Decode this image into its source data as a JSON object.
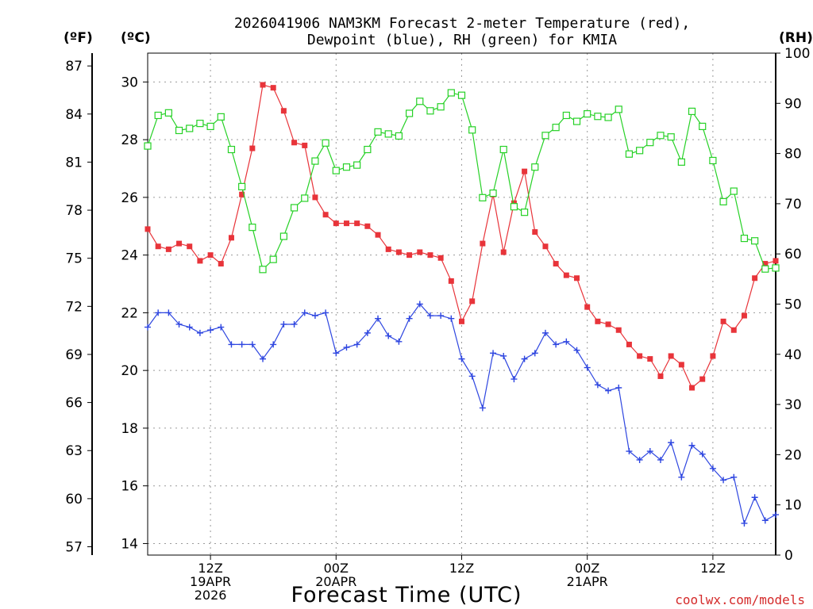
{
  "chart_data": {
    "type": "line",
    "title_line1": "2026041906 NAM3KM Forecast 2-meter Temperature (red),",
    "title_line2": "Dewpoint (blue), RH (green) for KMIA",
    "xlabel": "Forecast Time (UTC)",
    "credit": "coolwx.com/models",
    "units": {
      "f": "(ºF)",
      "c": "(ºC)",
      "rh": "(RH)"
    },
    "x_range": [
      0,
      60
    ],
    "c_range": [
      13.6,
      31.0
    ],
    "rh_range": [
      0,
      100
    ],
    "f_ticks": [
      {
        "v": 57,
        "label": "57"
      },
      {
        "v": 60,
        "label": "60"
      },
      {
        "v": 63,
        "label": "63"
      },
      {
        "v": 66,
        "label": "66"
      },
      {
        "v": 69,
        "label": "69"
      },
      {
        "v": 72,
        "label": "72"
      },
      {
        "v": 75,
        "label": "75"
      },
      {
        "v": 78,
        "label": "78"
      },
      {
        "v": 81,
        "label": "81"
      },
      {
        "v": 84,
        "label": "84"
      },
      {
        "v": 87,
        "label": "87"
      }
    ],
    "c_ticks": [
      {
        "v": 14,
        "label": "14"
      },
      {
        "v": 16,
        "label": "16"
      },
      {
        "v": 18,
        "label": "18"
      },
      {
        "v": 20,
        "label": "20"
      },
      {
        "v": 22,
        "label": "22"
      },
      {
        "v": 24,
        "label": "24"
      },
      {
        "v": 26,
        "label": "26"
      },
      {
        "v": 28,
        "label": "28"
      },
      {
        "v": 30,
        "label": "30"
      }
    ],
    "rh_ticks": [
      {
        "v": 0,
        "label": "0"
      },
      {
        "v": 10,
        "label": "10"
      },
      {
        "v": 20,
        "label": "20"
      },
      {
        "v": 30,
        "label": "30"
      },
      {
        "v": 40,
        "label": "40"
      },
      {
        "v": 50,
        "label": "50"
      },
      {
        "v": 60,
        "label": "60"
      },
      {
        "v": 70,
        "label": "70"
      },
      {
        "v": 80,
        "label": "80"
      },
      {
        "v": 90,
        "label": "90"
      },
      {
        "v": 100,
        "label": "100"
      }
    ],
    "x_ticks": [
      {
        "v": 6,
        "lines": [
          "12Z",
          "19APR",
          "2026"
        ]
      },
      {
        "v": 18,
        "lines": [
          "00Z",
          "20APR"
        ]
      },
      {
        "v": 30,
        "lines": [
          "12Z"
        ]
      },
      {
        "v": 42,
        "lines": [
          "00Z",
          "21APR"
        ]
      },
      {
        "v": 54,
        "lines": [
          "12Z"
        ]
      }
    ],
    "series": [
      {
        "name": "2-meter Temperature",
        "unit": "C",
        "color": "#e8343a",
        "marker": "filled-square",
        "x": [
          0,
          1,
          2,
          3,
          4,
          5,
          6,
          7,
          8,
          9,
          10,
          11,
          12,
          13,
          14,
          15,
          16,
          17,
          18,
          19,
          20,
          21,
          22,
          23,
          24,
          25,
          26,
          27,
          28,
          29,
          30,
          31,
          32,
          33,
          34,
          35,
          36,
          37,
          38,
          39,
          40,
          41,
          42,
          43,
          44,
          45,
          46,
          47,
          48,
          49,
          50,
          51,
          52,
          53,
          54,
          55,
          56,
          57,
          58,
          59,
          60
        ],
        "values": [
          24.9,
          24.3,
          24.2,
          24.4,
          24.3,
          23.8,
          24.0,
          23.7,
          24.6,
          26.1,
          27.7,
          29.9,
          29.8,
          29.0,
          27.9,
          27.8,
          26.0,
          25.4,
          25.1,
          25.1,
          25.1,
          25.0,
          24.7,
          24.2,
          24.1,
          24.0,
          24.1,
          24.0,
          23.9,
          23.1,
          21.7,
          22.4,
          24.4,
          26.1,
          24.1,
          25.8,
          26.9,
          24.8,
          24.3,
          23.7,
          23.3,
          23.2,
          22.2,
          21.7,
          21.6,
          21.4,
          20.9,
          20.5,
          20.4,
          19.8,
          20.5,
          20.2,
          19.4,
          19.7,
          20.5,
          21.7,
          21.4,
          21.9,
          23.2,
          23.7,
          23.8
        ]
      },
      {
        "name": "Dewpoint",
        "unit": "C",
        "color": "#2e46e0",
        "marker": "plus",
        "x": [
          0,
          1,
          2,
          3,
          4,
          5,
          6,
          7,
          8,
          9,
          10,
          11,
          12,
          13,
          14,
          15,
          16,
          17,
          18,
          19,
          20,
          21,
          22,
          23,
          24,
          25,
          26,
          27,
          28,
          29,
          30,
          31,
          32,
          33,
          34,
          35,
          36,
          37,
          38,
          39,
          40,
          41,
          42,
          43,
          44,
          45,
          46,
          47,
          48,
          49,
          50,
          51,
          52,
          53,
          54,
          55,
          56,
          57,
          58,
          59,
          60
        ],
        "values": [
          21.5,
          22.0,
          22.0,
          21.6,
          21.5,
          21.3,
          21.4,
          21.5,
          20.9,
          20.9,
          20.9,
          20.4,
          20.9,
          21.6,
          21.6,
          22.0,
          21.9,
          22.0,
          20.6,
          20.8,
          20.9,
          21.3,
          21.8,
          21.2,
          21.0,
          21.8,
          22.3,
          21.9,
          21.9,
          21.8,
          20.4,
          19.8,
          18.7,
          20.6,
          20.5,
          19.7,
          20.4,
          20.6,
          21.3,
          20.9,
          21.0,
          20.7,
          20.1,
          19.5,
          19.3,
          19.4,
          17.2,
          16.9,
          17.2,
          16.9,
          17.5,
          16.3,
          17.4,
          17.1,
          16.6,
          16.2,
          16.3,
          14.7,
          15.6,
          14.8,
          15.0
        ]
      },
      {
        "name": "RH",
        "unit": "%",
        "color": "#26d126",
        "marker": "open-square",
        "x": [
          0,
          1,
          2,
          3,
          4,
          5,
          6,
          7,
          8,
          9,
          10,
          11,
          12,
          13,
          14,
          15,
          16,
          17,
          18,
          19,
          20,
          21,
          22,
          23,
          24,
          25,
          26,
          27,
          28,
          29,
          30,
          31,
          32,
          33,
          34,
          35,
          36,
          37,
          38,
          39,
          40,
          41,
          42,
          43,
          44,
          45,
          46,
          47,
          48,
          49,
          50,
          51,
          52,
          53,
          54,
          55,
          56,
          57,
          58,
          59,
          60
        ],
        "values": [
          81.5,
          87.6,
          88.1,
          84.6,
          85.0,
          86.0,
          85.4,
          87.3,
          80.8,
          73.4,
          65.3,
          56.9,
          58.9,
          63.5,
          69.2,
          71.1,
          78.5,
          82.1,
          76.6,
          77.3,
          77.7,
          80.8,
          84.3,
          83.9,
          83.5,
          88.0,
          90.4,
          88.5,
          89.3,
          92.1,
          91.6,
          84.7,
          71.2,
          72.1,
          80.8,
          69.4,
          68.3,
          77.3,
          83.6,
          85.2,
          87.6,
          86.4,
          87.9,
          87.4,
          87.2,
          88.8,
          79.9,
          80.6,
          82.2,
          83.6,
          83.3,
          78.3,
          88.4,
          85.4,
          78.6,
          70.4,
          72.5,
          63.1,
          62.6,
          57.0,
          57.2
        ]
      }
    ]
  }
}
